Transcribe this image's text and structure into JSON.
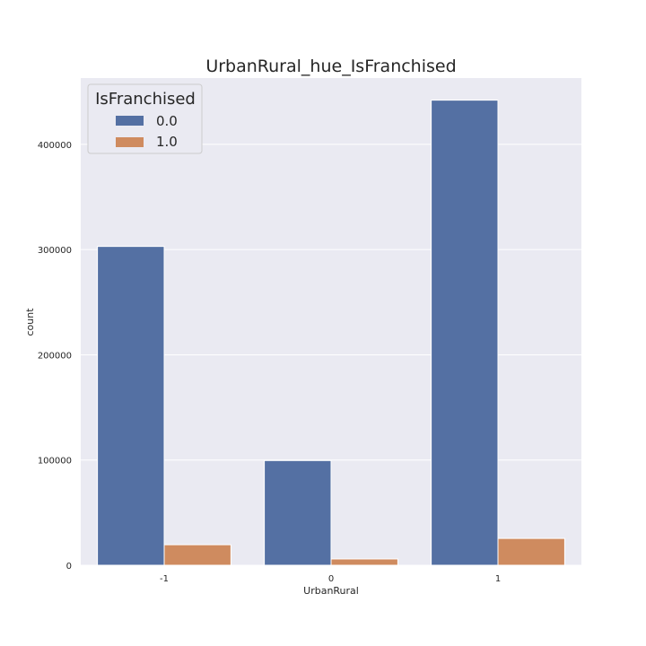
{
  "chart_data": {
    "type": "bar",
    "title": "UrbanRural_hue_IsFranchised",
    "xlabel": "UrbanRural",
    "ylabel": "count",
    "categories": [
      "-1",
      "0",
      "1"
    ],
    "series": [
      {
        "name": "0.0",
        "values": [
          303000,
          99500,
          442000
        ]
      },
      {
        "name": "1.0",
        "values": [
          19500,
          6000,
          25500
        ]
      }
    ],
    "ylim": [
      0,
      463000
    ],
    "yticks": [
      0,
      100000,
      200000,
      300000,
      400000
    ],
    "ytick_labels": [
      "0",
      "100000",
      "200000",
      "300000",
      "400000"
    ],
    "legend": {
      "title": "IsFranchised",
      "placement": "top-left"
    },
    "grid": "horizontal",
    "colors": {
      "background": "#eaeaf2",
      "grid": "#ffffff",
      "series": [
        "#5470a3",
        "#cf8b5f"
      ],
      "text": "#262626"
    }
  }
}
